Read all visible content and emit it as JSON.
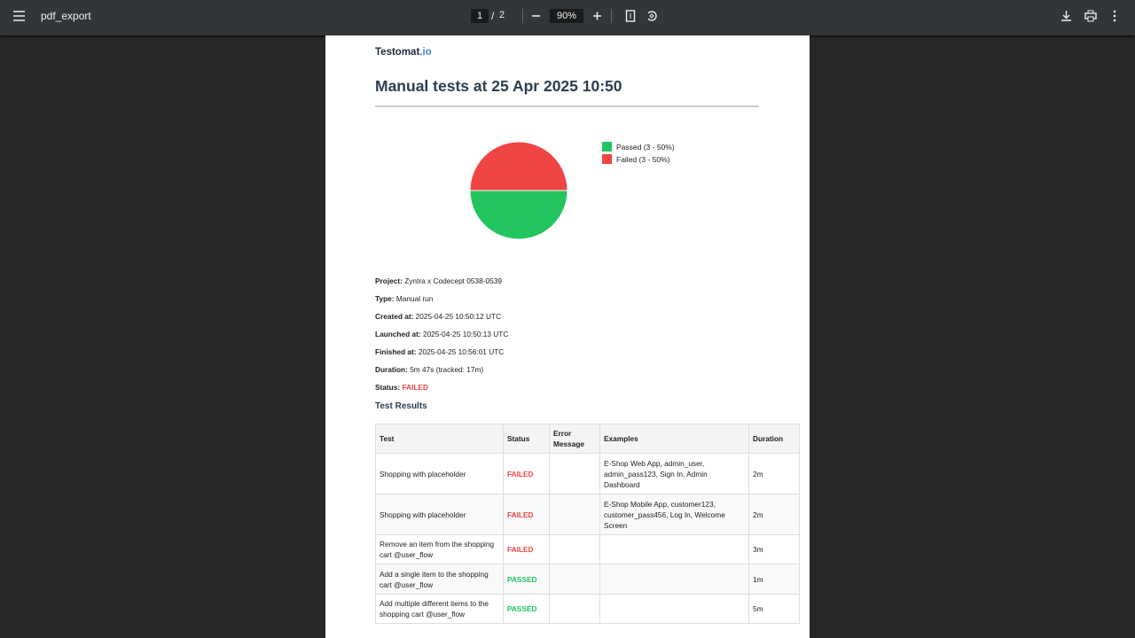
{
  "viewer": {
    "file_name": "pdf_export",
    "current_page": "1",
    "separator": "/",
    "page_count": "2",
    "zoom": "90%"
  },
  "document": {
    "logo": {
      "name": "Testomat",
      "suffix": ".io"
    },
    "title": "Manual tests at 25 Apr 2025 10:50",
    "pie": {
      "type": "pie",
      "slices": [
        {
          "label": "Passed (3 - 50%)",
          "value": 3,
          "color": "#22c55e"
        },
        {
          "label": "Failed (3 - 50%)",
          "value": 3,
          "color": "#ef4444"
        }
      ]
    },
    "details": [
      {
        "label": "Project:",
        "value": "Zyntra x Codecept 0538-0539"
      },
      {
        "label": "Type:",
        "value": "Manual run"
      },
      {
        "label": "Created at:",
        "value": "2025-04-25 10:50:12 UTC"
      },
      {
        "label": "Launched at:",
        "value": "2025-04-25 10:50:13 UTC"
      },
      {
        "label": "Finished at:",
        "value": "2025-04-25 10:56:01 UTC"
      },
      {
        "label": "Duration:",
        "value": "5m 47s (tracked: 17m)"
      },
      {
        "label": "Status:",
        "value": "FAILED"
      }
    ],
    "section_title": "Test Results",
    "table": {
      "headers": [
        "Test",
        "Status",
        "Error Message",
        "Examples",
        "Duration"
      ],
      "rows": [
        [
          "Shopping with placeholder",
          "FAILED",
          "",
          "E-Shop Web App, admin_user, admin_pass123, Sign In, Admin Dashboard",
          "2m"
        ],
        [
          "Shopping with placeholder",
          "FAILED",
          "",
          "E-Shop Mobile App, customer123, customer_pass456, Log In, Welcome Screen",
          "2m"
        ],
        [
          "Remove an item from the shopping cart @user_flow",
          "FAILED",
          "",
          "",
          "3m"
        ],
        [
          "Add a single item to the shopping cart @user_flow",
          "PASSED",
          "",
          "",
          "1m"
        ],
        [
          "Add multiple different items to the shopping cart @user_flow",
          "PASSED",
          "",
          "",
          "5m"
        ]
      ]
    }
  }
}
